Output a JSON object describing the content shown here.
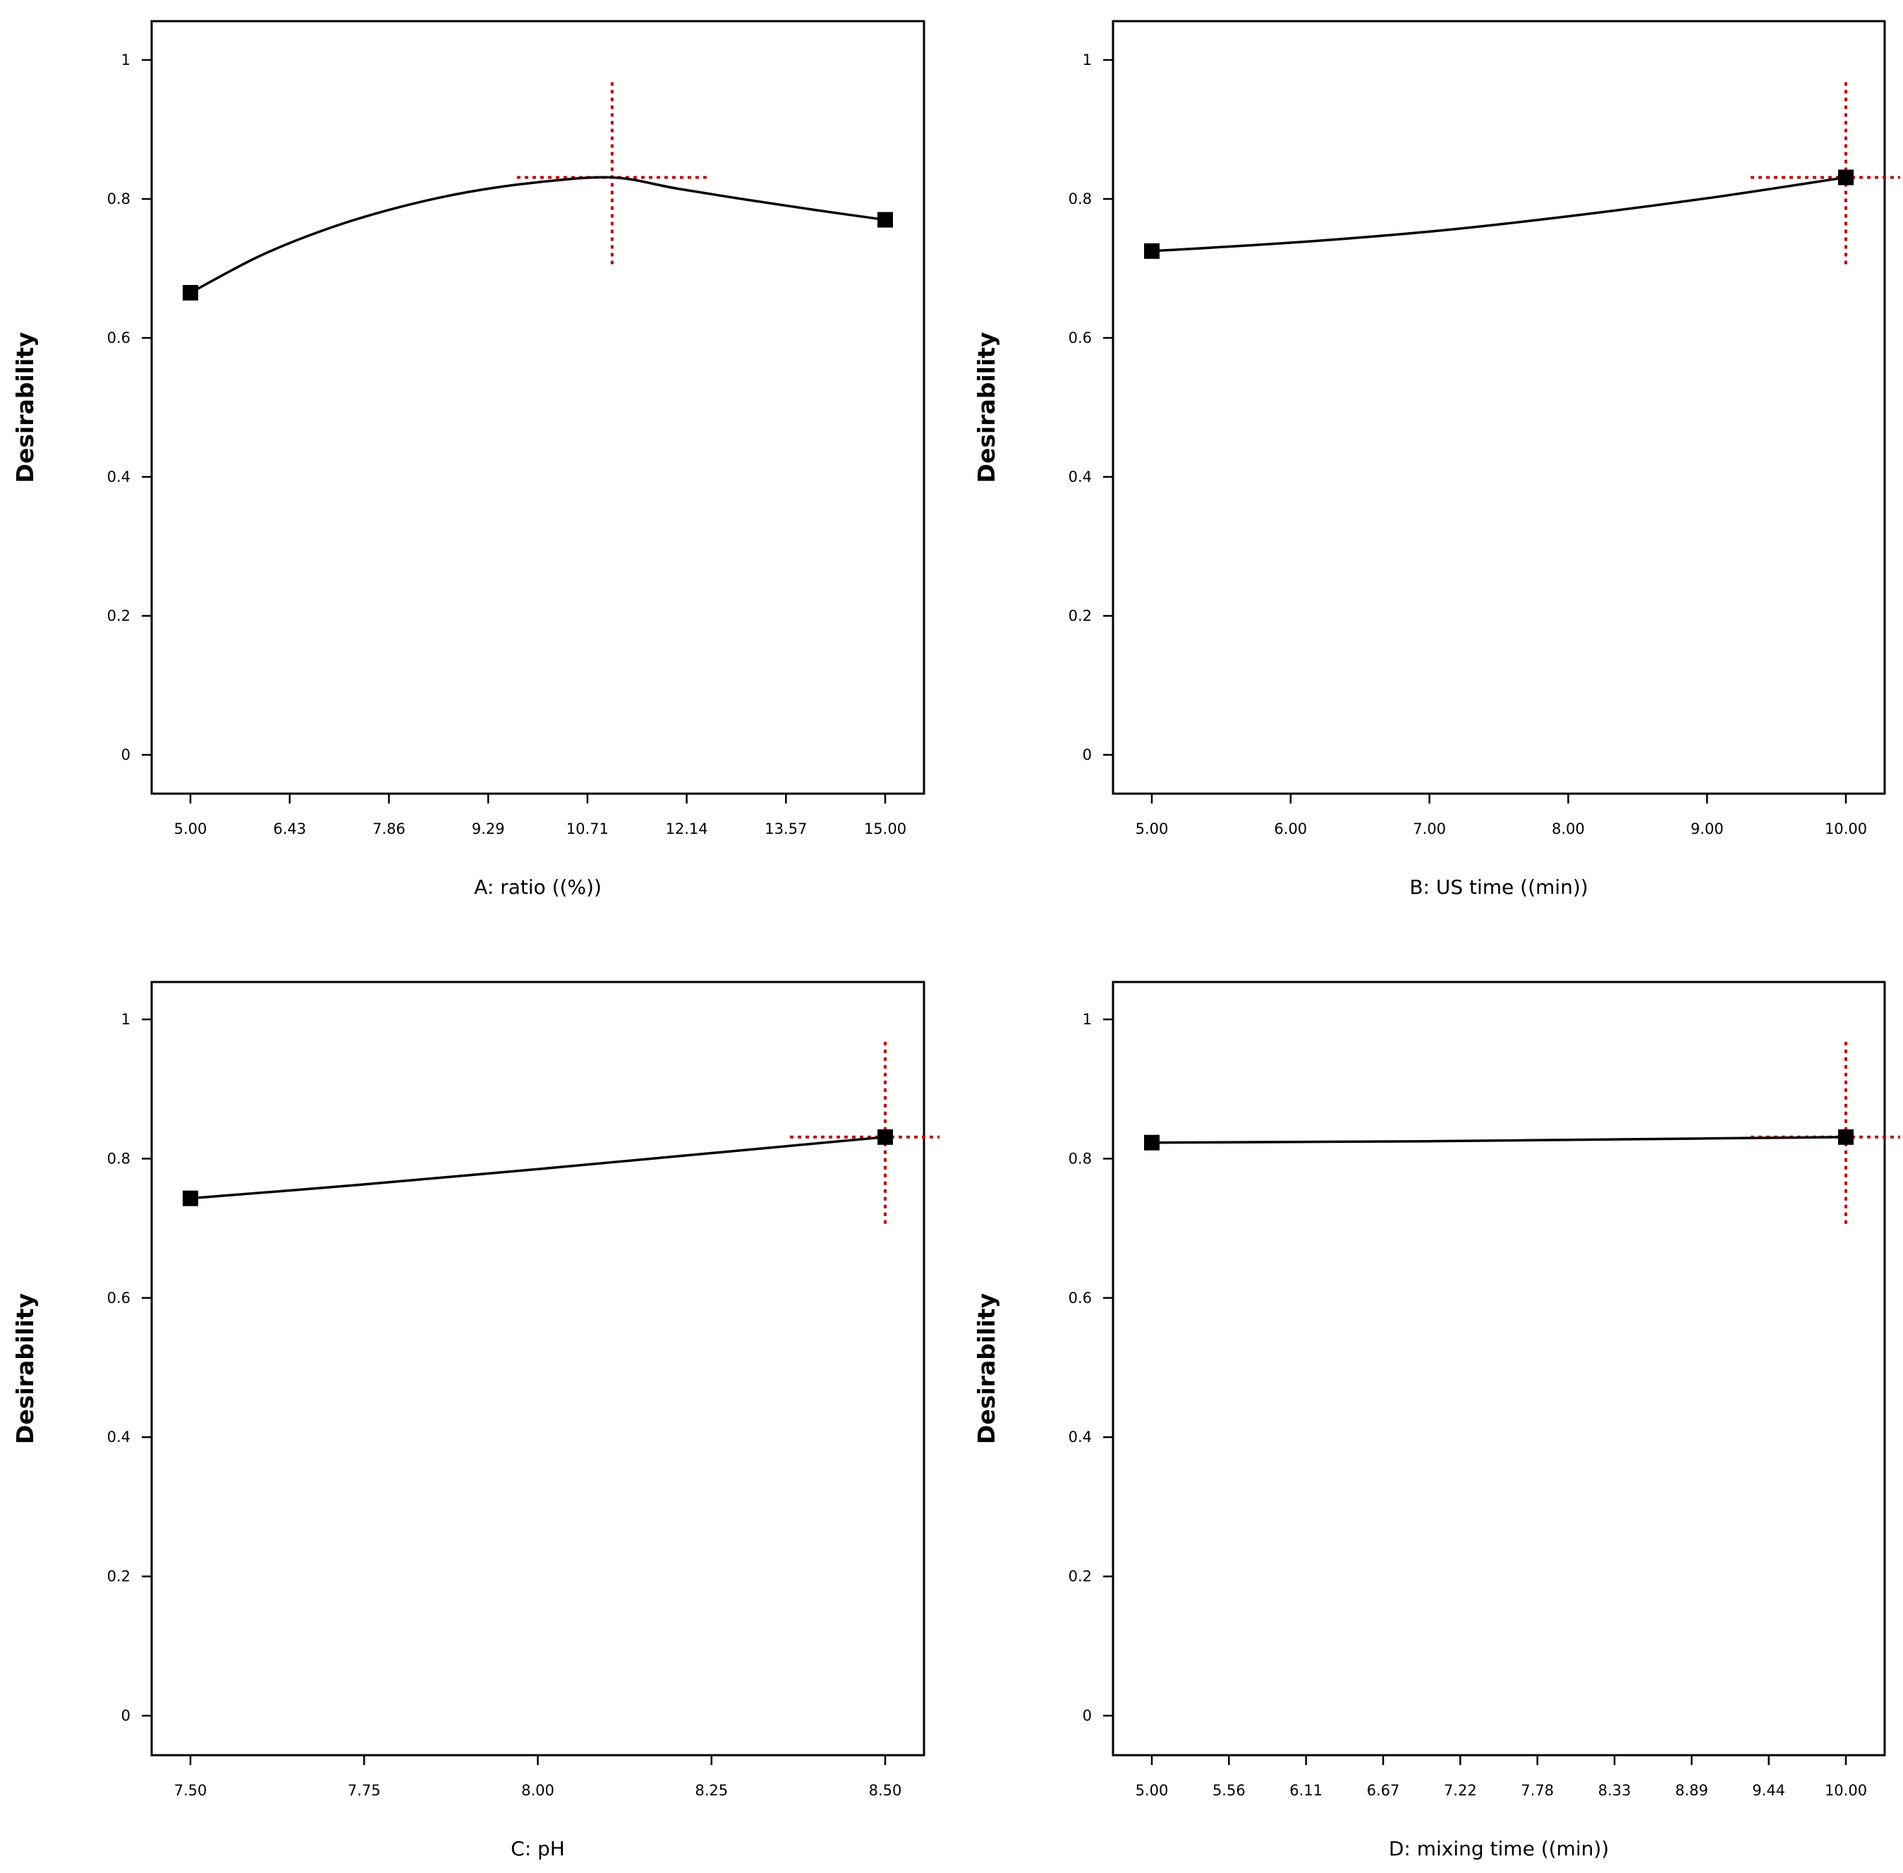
{
  "chart_data": [
    {
      "type": "line",
      "xlabel": "A: ratio ((%))",
      "ylabel": "Desirability",
      "xlim": [
        5.0,
        15.0
      ],
      "ylim": [
        0,
        1
      ],
      "x_ticks": [
        "5.00",
        "6.43",
        "7.86",
        "9.29",
        "10.71",
        "12.14",
        "13.57",
        "15.00"
      ],
      "y_ticks": [
        "0",
        "0.2",
        "0.4",
        "0.6",
        "0.8",
        "1"
      ],
      "curve": {
        "x": [
          5.0,
          6.0,
          7.0,
          8.0,
          9.0,
          10.0,
          11.07,
          12.0,
          13.0,
          14.0,
          15.0
        ],
        "y": [
          0.665,
          0.718,
          0.758,
          0.788,
          0.81,
          0.824,
          0.831,
          0.815,
          0.799,
          0.784,
          0.77
        ]
      },
      "endpoints": {
        "x": [
          5.0,
          15.0
        ],
        "y": [
          0.665,
          0.77
        ]
      },
      "optimum": {
        "x": 11.07,
        "y": 0.831
      },
      "crosshair_color": "#c00000"
    },
    {
      "type": "line",
      "xlabel": "B: US  time ((min))",
      "ylabel": "Desirability",
      "xlim": [
        5.0,
        10.0
      ],
      "ylim": [
        0,
        1
      ],
      "x_ticks": [
        "5.00",
        "6.00",
        "7.00",
        "8.00",
        "9.00",
        "10.00"
      ],
      "y_ticks": [
        "0",
        "0.2",
        "0.4",
        "0.6",
        "0.8",
        "1"
      ],
      "curve": {
        "x": [
          5.0,
          6.0,
          7.0,
          8.0,
          9.0,
          10.0
        ],
        "y": [
          0.725,
          0.737,
          0.753,
          0.775,
          0.801,
          0.831
        ]
      },
      "endpoints": {
        "x": [
          5.0,
          10.0
        ],
        "y": [
          0.725,
          0.831
        ]
      },
      "optimum": {
        "x": 10.0,
        "y": 0.831
      },
      "crosshair_color": "#c00000"
    },
    {
      "type": "line",
      "xlabel": "C: pH",
      "ylabel": "Desirability",
      "xlim": [
        7.5,
        8.5
      ],
      "ylim": [
        0,
        1
      ],
      "x_ticks": [
        "7.50",
        "7.75",
        "8.00",
        "8.25",
        "8.50"
      ],
      "y_ticks": [
        "0",
        "0.2",
        "0.4",
        "0.6",
        "0.8",
        "1"
      ],
      "curve": {
        "x": [
          7.5,
          7.75,
          8.0,
          8.25,
          8.5
        ],
        "y": [
          0.743,
          0.763,
          0.785,
          0.808,
          0.831
        ]
      },
      "endpoints": {
        "x": [
          7.5,
          8.5
        ],
        "y": [
          0.743,
          0.831
        ]
      },
      "optimum": {
        "x": 8.5,
        "y": 0.831
      },
      "crosshair_color": "#c00000"
    },
    {
      "type": "line",
      "xlabel": "D: mixing time ((min))",
      "ylabel": "Desirability",
      "xlim": [
        5.0,
        10.0
      ],
      "ylim": [
        0,
        1
      ],
      "x_ticks": [
        "5.00",
        "5.56",
        "6.11",
        "6.67",
        "7.22",
        "7.78",
        "8.33",
        "8.89",
        "9.44",
        "10.00"
      ],
      "y_ticks": [
        "0",
        "0.2",
        "0.4",
        "0.6",
        "0.8",
        "1"
      ],
      "curve": {
        "x": [
          5.0,
          6.0,
          7.0,
          8.0,
          9.0,
          10.0
        ],
        "y": [
          0.823,
          0.824,
          0.825,
          0.827,
          0.829,
          0.831
        ]
      },
      "endpoints": {
        "x": [
          5.0,
          10.0
        ],
        "y": [
          0.823,
          0.831
        ]
      },
      "optimum": {
        "x": 10.0,
        "y": 0.831
      },
      "crosshair_color": "#c00000"
    }
  ]
}
